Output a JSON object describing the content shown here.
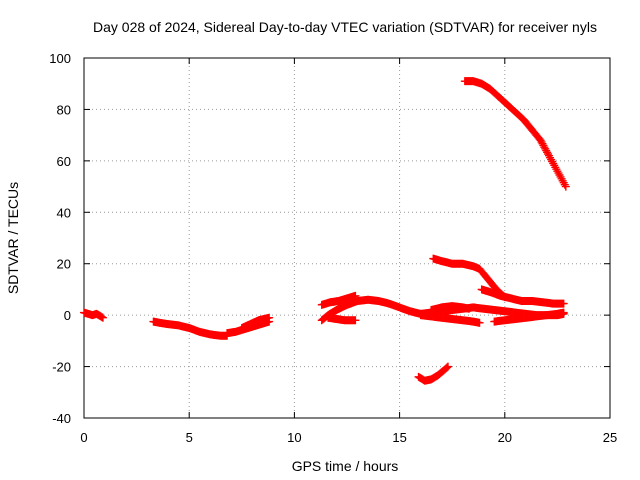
{
  "chart_data": {
    "type": "scatter",
    "title": "Day 028 of 2024, Sidereal Day-to-day VTEC variation (SDTVAR) for receiver nyls",
    "xlabel": "GPS time / hours",
    "ylabel": "SDTVAR / TECUs",
    "xlim": [
      0,
      25
    ],
    "ylim": [
      -40,
      100
    ],
    "xticks": [
      0,
      5,
      10,
      15,
      20,
      25
    ],
    "yticks": [
      -40,
      -20,
      0,
      20,
      40,
      60,
      80,
      100
    ],
    "grid": true,
    "marker": "+",
    "color": "#ff0000",
    "series": [
      {
        "x": [
          0.0,
          0.2,
          0.4,
          0.6,
          0.8,
          0.9
        ],
        "y": [
          1.0,
          0.5,
          0.0,
          0.5,
          -0.5,
          -1.0
        ]
      },
      {
        "x": [
          3.3,
          3.6,
          4.0,
          4.5,
          5.0,
          5.5,
          6.0,
          6.5,
          6.8
        ],
        "y": [
          -2.5,
          -3.0,
          -3.5,
          -4.0,
          -5.0,
          -6.5,
          -7.5,
          -8.0,
          -8.0
        ]
      },
      {
        "x": [
          6.8,
          7.2,
          7.6,
          8.0,
          8.4,
          8.8
        ],
        "y": [
          -7.0,
          -6.5,
          -5.5,
          -4.5,
          -3.5,
          -2.5
        ]
      },
      {
        "x": [
          7.5,
          7.9,
          8.3,
          8.8
        ],
        "y": [
          -5.0,
          -3.5,
          -2.0,
          -1.0
        ]
      },
      {
        "x": [
          11.3,
          11.6,
          12.0,
          12.5,
          13.0,
          13.5,
          14.0,
          14.5,
          15.0,
          15.5,
          16.0
        ],
        "y": [
          -2.0,
          0.0,
          2.0,
          4.0,
          5.5,
          6.0,
          5.5,
          4.5,
          3.0,
          1.5,
          0.5
        ]
      },
      {
        "x": [
          11.3,
          11.7,
          12.1,
          12.5,
          12.9
        ],
        "y": [
          4.0,
          5.0,
          5.5,
          6.5,
          7.5
        ]
      },
      {
        "x": [
          11.6,
          12.0,
          12.4,
          12.9
        ],
        "y": [
          -1.0,
          -1.5,
          -2.0,
          -2.0
        ]
      },
      {
        "x": [
          16.0,
          16.5,
          17.0,
          17.5,
          18.0,
          18.5,
          19.0,
          19.5,
          20.0,
          20.5,
          21.0,
          21.5,
          22.0,
          22.5,
          22.8
        ],
        "y": [
          0.5,
          1.0,
          1.5,
          2.0,
          2.5,
          3.0,
          2.5,
          2.0,
          1.5,
          1.0,
          0.5,
          0.0,
          0.0,
          0.0,
          0.5
        ]
      },
      {
        "x": [
          16.0,
          16.5,
          17.0,
          17.5,
          18.0,
          18.5,
          18.8
        ],
        "y": [
          0.0,
          -0.5,
          -1.0,
          -1.5,
          -2.0,
          -2.5,
          -3.0
        ]
      },
      {
        "x": [
          16.5,
          17.0,
          17.5,
          18.0,
          18.3
        ],
        "y": [
          2.0,
          3.0,
          3.5,
          3.0,
          2.5
        ]
      },
      {
        "x": [
          19.5,
          20.0,
          20.5,
          21.0,
          21.5,
          22.0,
          22.5,
          22.8
        ],
        "y": [
          -2.5,
          -2.0,
          -1.5,
          -1.0,
          -0.5,
          0.0,
          0.5,
          1.0
        ]
      },
      {
        "x": [
          15.9,
          16.2,
          16.5,
          16.8,
          17.1,
          17.3
        ],
        "y": [
          -24.0,
          -25.5,
          -25.0,
          -23.5,
          -21.5,
          -20.0
        ]
      },
      {
        "x": [
          16.6,
          17.0,
          17.5,
          18.0,
          18.5,
          18.8,
          19.0,
          19.3,
          19.6,
          20.0
        ],
        "y": [
          22.0,
          21.0,
          20.0,
          20.0,
          19.0,
          18.0,
          16.0,
          13.0,
          10.0,
          7.0
        ]
      },
      {
        "x": [
          18.9,
          19.3,
          19.8,
          20.3,
          20.8,
          21.3,
          21.8,
          22.3,
          22.8
        ],
        "y": [
          10.0,
          9.0,
          7.5,
          6.5,
          5.5,
          5.5,
          5.0,
          4.5,
          4.5
        ]
      },
      {
        "x": [
          18.1,
          18.5,
          18.9,
          19.3,
          19.7,
          20.1,
          20.5,
          20.9,
          21.3,
          21.7,
          22.1,
          22.5,
          22.9
        ],
        "y": [
          91.0,
          91.0,
          90.0,
          88.0,
          85.0,
          82.0,
          79.0,
          76.0,
          72.0,
          68.0,
          62.0,
          56.0,
          50.0
        ]
      }
    ]
  }
}
